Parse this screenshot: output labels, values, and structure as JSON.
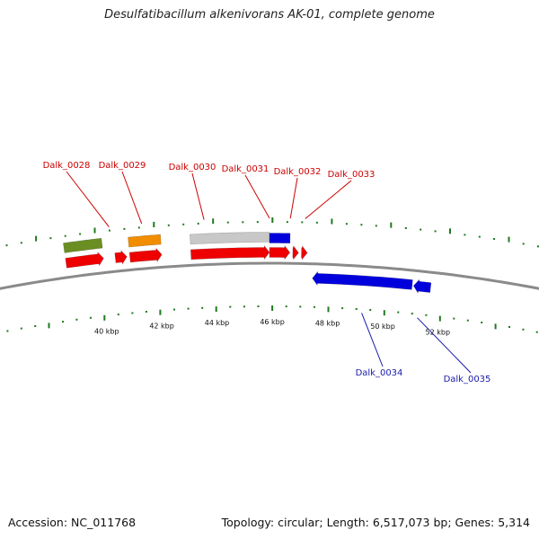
{
  "title": "Desulfatibacillum alkenivorans AK-01, complete genome",
  "footer": {
    "accession": "Accession: NC_011768",
    "summary": "Topology: circular; Length: 6,517,073 bp; Genes: 5,314"
  },
  "colors": {
    "forward_cds": "#ee0000",
    "reverse_cds": "#0000dd",
    "label_top": "#cc0000",
    "label_bottom": "#1a1aaa",
    "tick": "#1f7a1f",
    "backbone": "#8a8a8a",
    "olive": "#6b8e23",
    "orange": "#f28c00",
    "grey": "#c8c8c8",
    "steel": "#4a7fb0"
  },
  "ticks": [
    {
      "label": "40 kbp",
      "kb": 40
    },
    {
      "label": "42 kbp",
      "kb": 42
    },
    {
      "label": "44 kbp",
      "kb": 44
    },
    {
      "label": "46 kbp",
      "kb": 46
    },
    {
      "label": "48 kbp",
      "kb": 48
    },
    {
      "label": "50 kbp",
      "kb": 50
    },
    {
      "label": "52 kbp",
      "kb": 52
    }
  ],
  "genes_top": [
    {
      "name": "Dalk_0028"
    },
    {
      "name": "Dalk_0029"
    },
    {
      "name": "Dalk_0030"
    },
    {
      "name": "Dalk_0031"
    },
    {
      "name": "Dalk_0032"
    },
    {
      "name": "Dalk_0033"
    }
  ],
  "genes_bottom": [
    {
      "name": "Dalk_0034"
    },
    {
      "name": "Dalk_0035"
    }
  ]
}
